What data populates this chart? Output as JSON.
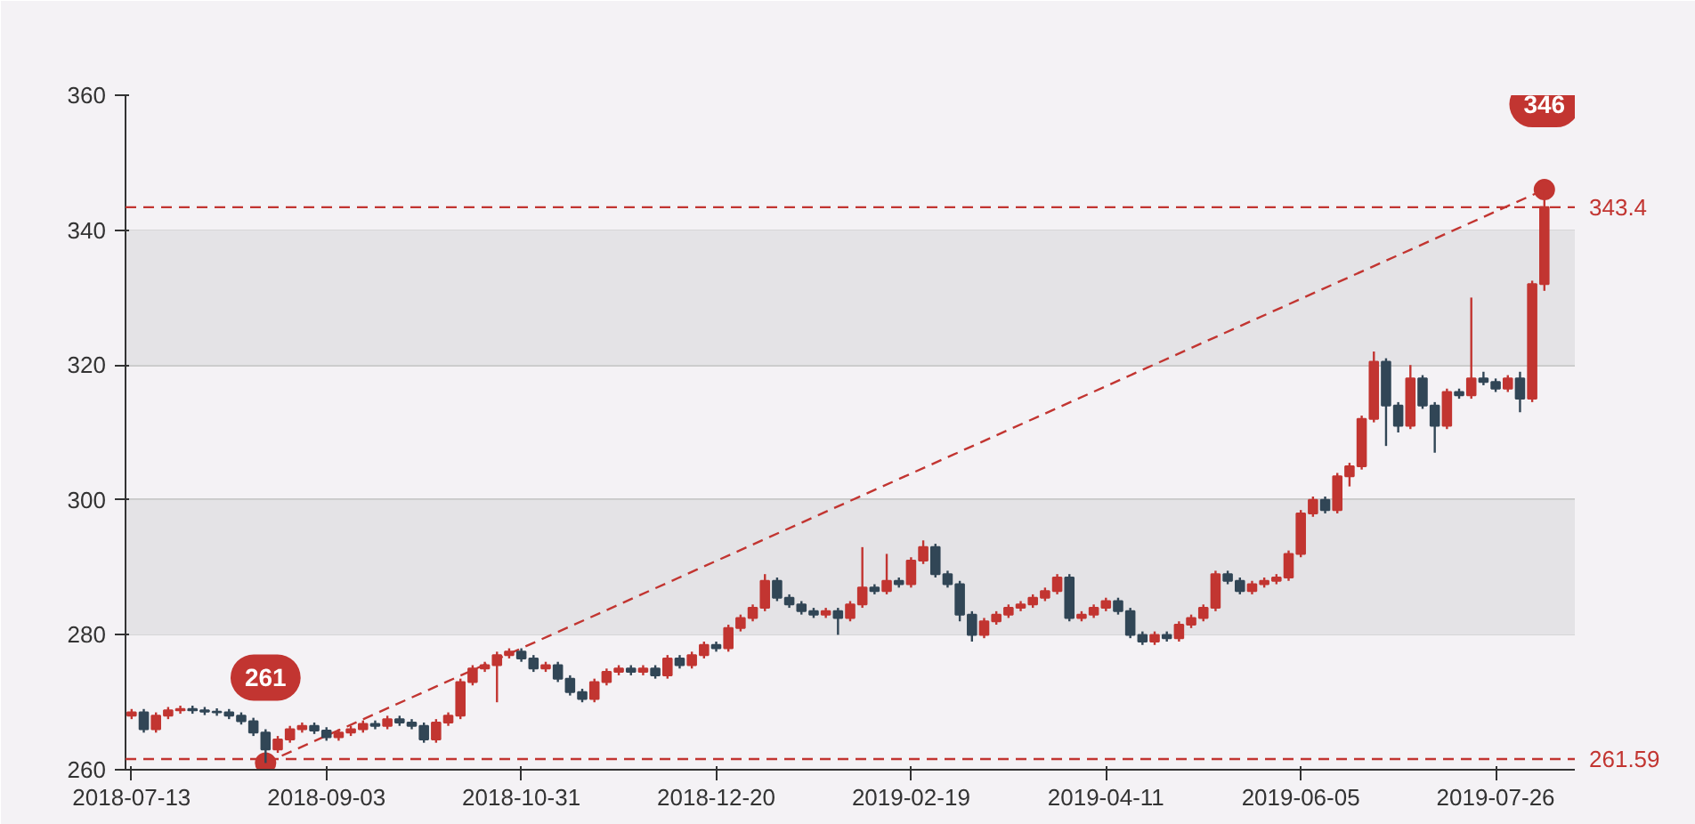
{
  "chart_data": {
    "type": "candlestick",
    "categories": [
      "2018-07-13",
      null,
      null,
      null,
      null,
      null,
      null,
      null,
      null,
      null,
      null,
      null,
      null,
      null,
      null,
      null,
      "2018-09-03",
      null,
      null,
      null,
      null,
      null,
      null,
      null,
      null,
      null,
      null,
      null,
      null,
      null,
      null,
      null,
      "2018-10-31",
      null,
      null,
      null,
      null,
      null,
      null,
      null,
      null,
      null,
      null,
      null,
      null,
      null,
      null,
      null,
      "2018-12-20",
      null,
      null,
      null,
      null,
      null,
      null,
      null,
      null,
      null,
      null,
      null,
      null,
      null,
      null,
      null,
      "2019-02-19",
      null,
      null,
      null,
      null,
      null,
      null,
      null,
      null,
      null,
      null,
      null,
      null,
      null,
      null,
      null,
      "2019-04-11",
      null,
      null,
      null,
      null,
      null,
      null,
      null,
      null,
      null,
      null,
      null,
      null,
      null,
      null,
      null,
      "2019-06-05",
      null,
      null,
      null,
      null,
      null,
      null,
      null,
      null,
      null,
      null,
      null,
      null,
      null,
      null,
      null,
      "2019-07-26",
      null,
      null,
      null,
      null
    ],
    "ohlc": [
      [
        268,
        269,
        267.5,
        268.5
      ],
      [
        268.5,
        269,
        265.5,
        266
      ],
      [
        266,
        268.5,
        265.5,
        268
      ],
      [
        268,
        269.3,
        267.5,
        268.8
      ],
      [
        268.8,
        269.5,
        268.3,
        269
      ],
      [
        269,
        269.5,
        268.3,
        268.8
      ],
      [
        268.8,
        269.3,
        268.1,
        268.6
      ],
      [
        268.6,
        269.1,
        268,
        268.5
      ],
      [
        268.5,
        269,
        267.5,
        268
      ],
      [
        268,
        268.5,
        266.7,
        267.2
      ],
      [
        267.2,
        267.7,
        265,
        265.5
      ],
      [
        265.5,
        266,
        261,
        263
      ],
      [
        263,
        265,
        262.5,
        264.5
      ],
      [
        264.5,
        266.5,
        264,
        266
      ],
      [
        266,
        267,
        265.5,
        266.5
      ],
      [
        266.5,
        267,
        265.3,
        265.8
      ],
      [
        265.8,
        266.3,
        264.3,
        264.8
      ],
      [
        264.8,
        266,
        264.3,
        265.5
      ],
      [
        265.5,
        266.5,
        265,
        266
      ],
      [
        266,
        267.3,
        265.5,
        266.8
      ],
      [
        266.8,
        267.3,
        266,
        266.5
      ],
      [
        266.5,
        268,
        266,
        267.5
      ],
      [
        267.5,
        268,
        266.5,
        267
      ],
      [
        267,
        267.5,
        266,
        266.5
      ],
      [
        266.5,
        267,
        264,
        264.5
      ],
      [
        264.5,
        267.5,
        264,
        267
      ],
      [
        267,
        268.5,
        266.5,
        268
      ],
      [
        268,
        273.5,
        267.5,
        273
      ],
      [
        273,
        275.5,
        272.5,
        275
      ],
      [
        275,
        276,
        274.5,
        275.5
      ],
      [
        275.5,
        277.5,
        270,
        277
      ],
      [
        277,
        278,
        276.5,
        277.5
      ],
      [
        277.5,
        278,
        276,
        276.5
      ],
      [
        276.5,
        277,
        274.5,
        275
      ],
      [
        275,
        276,
        274.5,
        275.5
      ],
      [
        275.5,
        276,
        273,
        273.5
      ],
      [
        273.5,
        274,
        271,
        271.5
      ],
      [
        271.5,
        272,
        270,
        270.5
      ],
      [
        270.5,
        273.5,
        270,
        273
      ],
      [
        273,
        275,
        272.5,
        274.5
      ],
      [
        274.5,
        275.5,
        274,
        275
      ],
      [
        275,
        275.5,
        274,
        274.5
      ],
      [
        274.5,
        275.5,
        274,
        275
      ],
      [
        275,
        275.5,
        273.5,
        274
      ],
      [
        274,
        277,
        273.5,
        276.5
      ],
      [
        276.5,
        277,
        275,
        275.5
      ],
      [
        275.5,
        277.5,
        275,
        277
      ],
      [
        277,
        279,
        276.5,
        278.5
      ],
      [
        278.5,
        279,
        277.5,
        278
      ],
      [
        278,
        281.5,
        277.5,
        281
      ],
      [
        281,
        283,
        280.5,
        282.5
      ],
      [
        282.5,
        284.5,
        282,
        284
      ],
      [
        284,
        289,
        283.5,
        288
      ],
      [
        288,
        288.5,
        285,
        285.5
      ],
      [
        285.5,
        286,
        284,
        284.5
      ],
      [
        284.5,
        285,
        283,
        283.5
      ],
      [
        283.5,
        284,
        282.5,
        283
      ],
      [
        283,
        284,
        282.5,
        283.5
      ],
      [
        283.5,
        284,
        280,
        282.5
      ],
      [
        282.5,
        285,
        282,
        284.5
      ],
      [
        284.5,
        293,
        284,
        287
      ],
      [
        287,
        287.5,
        286,
        286.5
      ],
      [
        286.5,
        292,
        286,
        288
      ],
      [
        288,
        288.5,
        287,
        287.5
      ],
      [
        287.5,
        291.5,
        287,
        291
      ],
      [
        291,
        294,
        290.5,
        293
      ],
      [
        293,
        293.5,
        288.5,
        289
      ],
      [
        289,
        289.5,
        287,
        287.5
      ],
      [
        287.5,
        288,
        282,
        283
      ],
      [
        283,
        283.5,
        279,
        280
      ],
      [
        280,
        282.5,
        279.5,
        282
      ],
      [
        282,
        283.5,
        281.5,
        283
      ],
      [
        283,
        284.5,
        282.5,
        284
      ],
      [
        284,
        285,
        283.5,
        284.5
      ],
      [
        284.5,
        286,
        284,
        285.5
      ],
      [
        285.5,
        287,
        285,
        286.5
      ],
      [
        286.5,
        289,
        286,
        288.5
      ],
      [
        288.5,
        289,
        282,
        282.5
      ],
      [
        282.5,
        283.5,
        282,
        283
      ],
      [
        283,
        284.5,
        282.5,
        284
      ],
      [
        284,
        285.5,
        283.5,
        285
      ],
      [
        285,
        285.5,
        283,
        283.5
      ],
      [
        283.5,
        284,
        279.5,
        280
      ],
      [
        280,
        280.5,
        278.5,
        279
      ],
      [
        279,
        280.5,
        278.5,
        280
      ],
      [
        280,
        280.5,
        279,
        279.5
      ],
      [
        279.5,
        282,
        279,
        281.5
      ],
      [
        281.5,
        283,
        281,
        282.5
      ],
      [
        282.5,
        284.5,
        282,
        284
      ],
      [
        284,
        289.5,
        283.5,
        289
      ],
      [
        289,
        289.5,
        287.5,
        288
      ],
      [
        288,
        288.5,
        286,
        286.5
      ],
      [
        286.5,
        288,
        286,
        287.5
      ],
      [
        287.5,
        288.5,
        287,
        288
      ],
      [
        288,
        289,
        287.5,
        288.5
      ],
      [
        288.5,
        292.5,
        288,
        292
      ],
      [
        292,
        298.5,
        291.5,
        298
      ],
      [
        298,
        300.5,
        297.5,
        300
      ],
      [
        300,
        300.5,
        298,
        298.5
      ],
      [
        298.5,
        304,
        298,
        303.5
      ],
      [
        303.5,
        305.5,
        302,
        305
      ],
      [
        305,
        312.5,
        304.5,
        312
      ],
      [
        312,
        322,
        311.5,
        320.5
      ],
      [
        320.5,
        321,
        308,
        314
      ],
      [
        314,
        314.5,
        310,
        311
      ],
      [
        311,
        320,
        310.5,
        318
      ],
      [
        318,
        318.5,
        313.5,
        314
      ],
      [
        314,
        314.5,
        307,
        311
      ],
      [
        311,
        316.5,
        310.5,
        316
      ],
      [
        316,
        316.5,
        315,
        315.5
      ],
      [
        315.5,
        330,
        315,
        318
      ],
      [
        318,
        319,
        317,
        317.5
      ],
      [
        317.5,
        318,
        316,
        316.5
      ],
      [
        316.5,
        318.5,
        316,
        318
      ],
      [
        318,
        319,
        313,
        315
      ],
      [
        315,
        332.5,
        314.5,
        332
      ],
      [
        332,
        346,
        331,
        343.4
      ]
    ],
    "colors": [
      "#c23531",
      "#314656",
      "#c23531",
      "#c23531",
      "#c23531",
      "#314656",
      "#314656",
      "#314656",
      "#314656",
      "#314656",
      "#314656",
      "#314656",
      "#c23531",
      "#c23531",
      "#c23531",
      "#314656",
      "#314656",
      "#c23531",
      "#c23531",
      "#c23531",
      "#314656",
      "#c23531",
      "#314656",
      "#314656",
      "#314656",
      "#c23531",
      "#c23531",
      "#c23531",
      "#c23531",
      "#c23531",
      "#c23531",
      "#c23531",
      "#314656",
      "#314656",
      "#c23531",
      "#314656",
      "#314656",
      "#314656",
      "#c23531",
      "#c23531",
      "#c23531",
      "#314656",
      "#c23531",
      "#314656",
      "#c23531",
      "#314656",
      "#c23531",
      "#c23531",
      "#314656",
      "#c23531",
      "#c23531",
      "#c23531",
      "#c23531",
      "#314656",
      "#314656",
      "#314656",
      "#314656",
      "#c23531",
      "#314656",
      "#c23531",
      "#c23531",
      "#314656",
      "#c23531",
      "#314656",
      "#c23531",
      "#c23531",
      "#314656",
      "#314656",
      "#314656",
      "#314656",
      "#c23531",
      "#c23531",
      "#c23531",
      "#c23531",
      "#c23531",
      "#c23531",
      "#c23531",
      "#314656",
      "#c23531",
      "#c23531",
      "#c23531",
      "#314656",
      "#314656",
      "#314656",
      "#c23531",
      "#314656",
      "#c23531",
      "#c23531",
      "#c23531",
      "#c23531",
      "#314656",
      "#314656",
      "#c23531",
      "#c23531",
      "#c23531",
      "#c23531",
      "#c23531",
      "#c23531",
      "#314656",
      "#c23531",
      "#c23531",
      "#c23531",
      "#c23531",
      "#314656",
      "#314656",
      "#c23531",
      "#314656",
      "#314656",
      "#c23531",
      "#314656",
      "#c23531",
      "#314656",
      "#314656",
      "#c23531",
      "#314656",
      "#c23531",
      "#c23531"
    ],
    "series": [
      {
        "type": "line",
        "color": "#c23531",
        "line_style": "dashed",
        "marker": "circle",
        "values": [
          null,
          null,
          null,
          null,
          null,
          null,
          null,
          null,
          null,
          null,
          null,
          261,
          null,
          null,
          null,
          null,
          null,
          null,
          null,
          null,
          null,
          null,
          null,
          null,
          null,
          null,
          null,
          null,
          null,
          null,
          null,
          null,
          null,
          null,
          null,
          null,
          null,
          null,
          null,
          null,
          null,
          null,
          null,
          null,
          null,
          null,
          null,
          null,
          null,
          null,
          null,
          null,
          null,
          null,
          null,
          null,
          null,
          null,
          null,
          null,
          null,
          null,
          null,
          null,
          null,
          null,
          null,
          null,
          null,
          null,
          null,
          null,
          null,
          null,
          null,
          null,
          null,
          null,
          null,
          null,
          null,
          null,
          null,
          null,
          null,
          null,
          null,
          null,
          null,
          null,
          null,
          null,
          null,
          null,
          null,
          null,
          null,
          null,
          null,
          null,
          null,
          null,
          null,
          null,
          null,
          null,
          null,
          null,
          null,
          null,
          null,
          null,
          null,
          null,
          null,
          null,
          346
        ]
      }
    ],
    "annotations": [
      {
        "text": "261",
        "y": 261
      },
      {
        "text": "346",
        "y": 346
      }
    ],
    "ref_lines": [
      {
        "axis": "y",
        "value": 343.4,
        "label": "343.4",
        "color": "#c23531",
        "line_style": "dashed"
      },
      {
        "axis": "y",
        "value": 261.59,
        "label": "261.59",
        "color": "#c23531",
        "line_style": "dashed"
      }
    ],
    "bands": [
      {
        "axis": "y",
        "from": 280,
        "to": 300,
        "color": "#e4e3e6"
      },
      {
        "axis": "y",
        "from": 320,
        "to": 340,
        "color": "#e4e3e6"
      }
    ],
    "ylim": [
      260,
      360
    ],
    "yticks": [
      260,
      280,
      300,
      320,
      340,
      360
    ],
    "grid": "y"
  }
}
